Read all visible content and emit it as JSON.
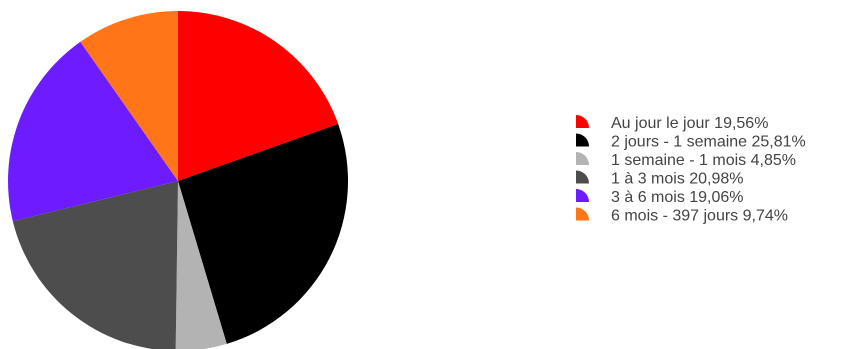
{
  "chart_data": {
    "type": "pie",
    "title": "",
    "legend_position": "right",
    "start_angle_deg": 0,
    "direction": "clockwise",
    "slices": [
      {
        "label": "Au jour le jour",
        "value_text": "19,56%",
        "value": 19.56,
        "color": "#ff0000"
      },
      {
        "label": "2 jours - 1 semaine",
        "value_text": "25,81%",
        "value": 25.81,
        "color": "#000000"
      },
      {
        "label": "1 semaine - 1 mois",
        "value_text": "4,85%",
        "value": 4.85,
        "color": "#b3b3b3"
      },
      {
        "label": "1 à 3 mois",
        "value_text": "20,98%",
        "value": 20.98,
        "color": "#4d4d4d"
      },
      {
        "label": "3 à 6 mois",
        "value_text": "19,06%",
        "value": 19.06,
        "color": "#6c1cff"
      },
      {
        "label": "6 mois - 397 jours",
        "value_text": "9,74%",
        "value": 9.74,
        "color": "#ff7518"
      }
    ]
  }
}
